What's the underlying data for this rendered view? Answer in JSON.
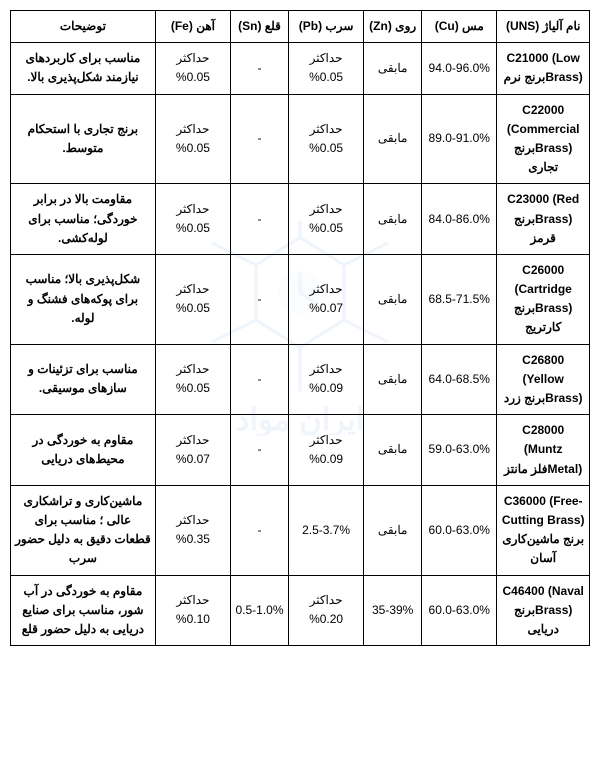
{
  "table": {
    "columns": [
      "نام آلیاژ (UNS)",
      "مس (Cu)",
      "روی (Zn)",
      "سرب (Pb)",
      "قلع (Sn)",
      "آهن (Fe)",
      "توضیحات"
    ],
    "rows": [
      {
        "name": "C21000 (Low Brass)برنج نرم",
        "cu": "94.0-96.0%",
        "zn": "مابقی",
        "pb": "حداکثر 0.05%",
        "sn": "-",
        "fe": "حداکثر 0.05%",
        "desc": "مناسب برای کاربردهای نیازمند شکل‌پذیری بالا."
      },
      {
        "name": "C22000 (Commercial Brass)برنج تجاری",
        "cu": "89.0-91.0%",
        "zn": "مابقی",
        "pb": "حداکثر 0.05%",
        "sn": "-",
        "fe": "حداکثر 0.05%",
        "desc": "برنج تجاری با استحکام متوسط."
      },
      {
        "name": "C23000 (Red Brass)برنج قرمز",
        "cu": "84.0-86.0%",
        "zn": "مابقی",
        "pb": "حداکثر 0.05%",
        "sn": "-",
        "fe": "حداکثر 0.05%",
        "desc": "مقاومت بالا در برابر خوردگی؛ مناسب برای لوله‌کشی."
      },
      {
        "name": "C26000 (Cartridge Brass)برنج کارتریج",
        "cu": "68.5-71.5%",
        "zn": "مابقی",
        "pb": "حداکثر 0.07%",
        "sn": "-",
        "fe": "حداکثر 0.05%",
        "desc": "شکل‌پذیری بالا؛ مناسب برای پوکه‌های فشنگ و لوله."
      },
      {
        "name": "C26800 (Yellow Brass)برنج زرد",
        "cu": "64.0-68.5%",
        "zn": "مابقی",
        "pb": "حداکثر 0.09%",
        "sn": "-",
        "fe": "حداکثر 0.05%",
        "desc": "مناسب برای تزئینات و سازهای موسیقی."
      },
      {
        "name": "C28000 (Muntz Metal)فلز مانتز",
        "cu": "59.0-63.0%",
        "zn": "مابقی",
        "pb": "حداکثر 0.09%",
        "sn": "-",
        "fe": "حداکثر 0.07%",
        "desc": "مقاوم به خوردگی در محیط‌های دریایی"
      },
      {
        "name": "C36000 (Free-Cutting Brass) برنج ماشین‌کاری آسان",
        "cu": "60.0-63.0%",
        "zn": "مابقی",
        "pb": "2.5-3.7%",
        "sn": "-",
        "fe": "حداکثر 0.35%",
        "desc": "ماشین‌کاری و تراشکاری عالی ؛ مناسب برای قطعات دقیق به دلیل حضور سرب"
      },
      {
        "name": "C46400 (Naval Brass)برنج دریایی",
        "cu": "60.0-63.0%",
        "zn": "35-39%",
        "pb": "حداکثر 0.20%",
        "sn": "0.5-1.0%",
        "fe": "حداکثر 0.10%",
        "desc": "مقاوم به خوردگی در آب شور، مناسب برای صنایع دریایی به دلیل حضور قلع"
      }
    ],
    "colors": {
      "border": "#000000",
      "background": "#ffffff",
      "watermark": "#4a90d9"
    }
  }
}
